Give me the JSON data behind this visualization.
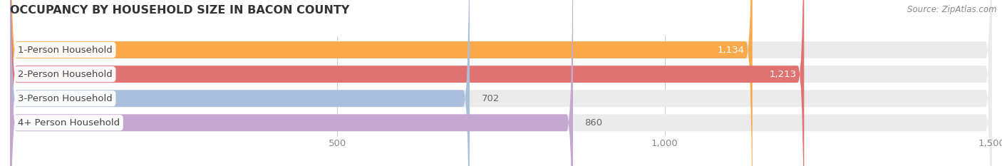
{
  "title": "OCCUPANCY BY HOUSEHOLD SIZE IN BACON COUNTY",
  "source": "Source: ZipAtlas.com",
  "categories": [
    "1-Person Household",
    "2-Person Household",
    "3-Person Household",
    "4+ Person Household"
  ],
  "values": [
    1134,
    1213,
    702,
    860
  ],
  "bar_colors": [
    "#F9A84A",
    "#E07272",
    "#AABFDB",
    "#C4A8CF"
  ],
  "bar_bg_color": "#EBEBEB",
  "xlim_max": 1500,
  "xticks": [
    500,
    1000,
    1500
  ],
  "xtick_labels": [
    "500",
    "1,000",
    "1,500"
  ],
  "title_fontsize": 11.5,
  "label_fontsize": 9.5,
  "value_fontsize": 9.5,
  "source_fontsize": 8.5,
  "background_color": "#FFFFFF",
  "bar_height": 0.7,
  "grid_color": "#CCCCCC",
  "label_color": "#444444",
  "value_color_inside": "#FFFFFF",
  "value_color_outside": "#666666",
  "tick_color": "#888888"
}
